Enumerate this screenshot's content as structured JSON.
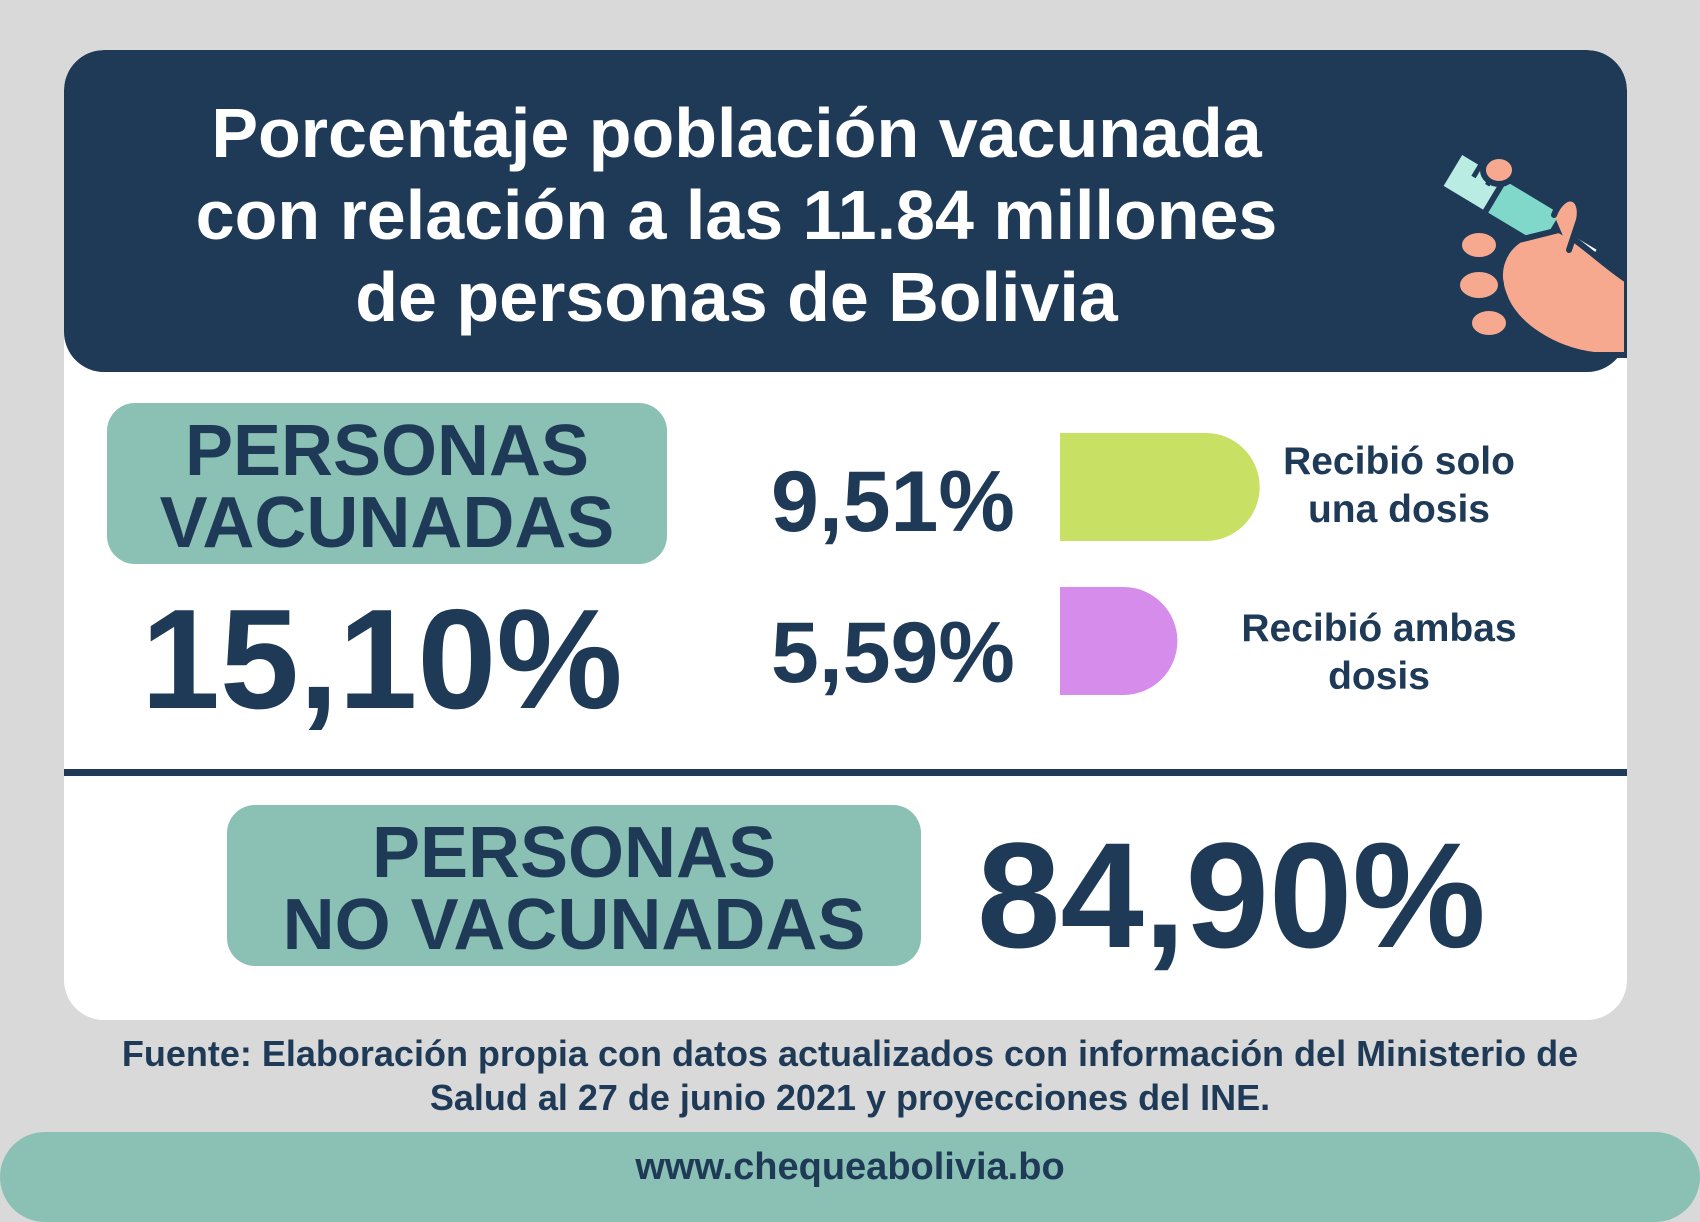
{
  "header": {
    "title_lines": [
      "Porcentaje población vacunada",
      "con relación a las 11.84 millones",
      "de personas de Bolivia"
    ]
  },
  "vaccinated": {
    "label_lines": [
      "PERSONAS",
      "VACUNADAS"
    ],
    "total": "15,10%"
  },
  "not_vaccinated": {
    "label_lines": [
      "PERSONAS",
      "NO VACUNADAS"
    ],
    "total": "84,90%"
  },
  "chart_data": {
    "type": "bar",
    "categories": [
      "Recibió solo una dosis",
      "Recibió ambas dosis"
    ],
    "values": [
      9.51,
      5.59
    ],
    "value_labels": [
      "9,51%",
      "5,59%"
    ],
    "category_label_lines": [
      [
        "Recibió solo",
        "una dosis"
      ],
      [
        "Recibió ambas",
        "dosis"
      ]
    ],
    "colors": [
      "#c8e064",
      "#d68cea"
    ],
    "title": "",
    "xlabel": "",
    "ylabel": ""
  },
  "source": {
    "lines": [
      "Fuente:  Elaboración propia con datos actualizados con información del Ministerio de",
      "Salud al 27 de junio 2021 y proyecciones del INE."
    ]
  },
  "footer": {
    "url": "www.chequeabolivia.bo"
  },
  "colors": {
    "navy": "#1e3a57",
    "teal": "#8ac1b4",
    "background": "#d9d9d9",
    "white": "#ffffff"
  },
  "icons": {
    "header_icon": "syringe-hand-icon"
  }
}
